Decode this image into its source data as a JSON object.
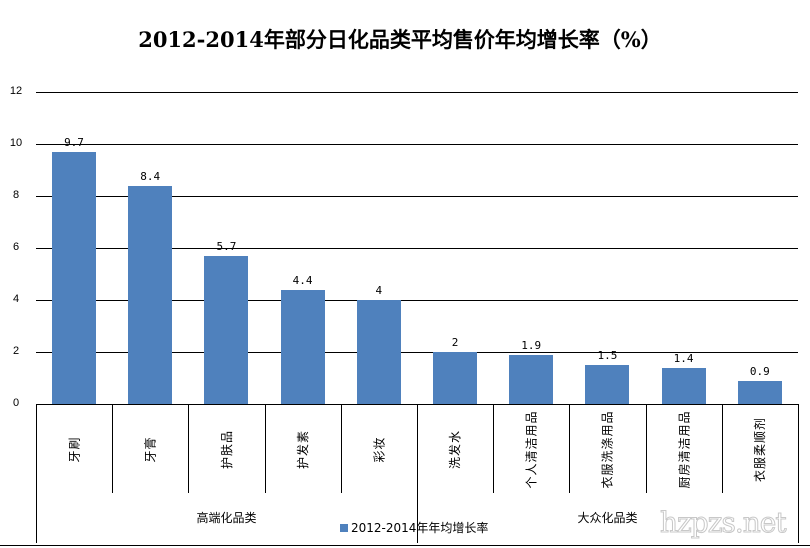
{
  "chart_data": {
    "type": "bar",
    "title": "2012-2014年部分日化品类平均售价年均增长率（%）",
    "xlabel": "",
    "ylabel": "",
    "ylim": [
      0,
      12
    ],
    "yticks": [
      0,
      2,
      4,
      6,
      8,
      10,
      12
    ],
    "grid": true,
    "legend_position": "bottom",
    "categories": [
      "牙刷",
      "牙膏",
      "护肤品",
      "护发素",
      "彩妆",
      "洗发水",
      "个人清洁用品",
      "衣服洗涤用品",
      "厨房清洁用品",
      "衣服柔顺剂"
    ],
    "groups": [
      {
        "name": "高端化品类",
        "categories": [
          "牙刷",
          "牙膏",
          "护肤品",
          "护发素",
          "彩妆"
        ]
      },
      {
        "name": "大众化品类",
        "categories": [
          "洗发水",
          "个人清洁用品",
          "衣服洗涤用品",
          "厨房清洁用品",
          "衣服柔顺剂"
        ]
      }
    ],
    "series": [
      {
        "name": "2012-2014年年均增长率",
        "color": "#4f81bd",
        "values": [
          9.7,
          8.4,
          5.7,
          4.4,
          4,
          2,
          1.9,
          1.5,
          1.4,
          0.9
        ]
      }
    ],
    "data_labels": [
      "9.7",
      "8.4",
      "5.7",
      "4.4",
      "4",
      "2",
      "1.9",
      "1.5",
      "1.4",
      "0.9"
    ]
  },
  "legend": {
    "label": "2012-2014年年均增长率"
  },
  "watermark": "hzpzs.net"
}
